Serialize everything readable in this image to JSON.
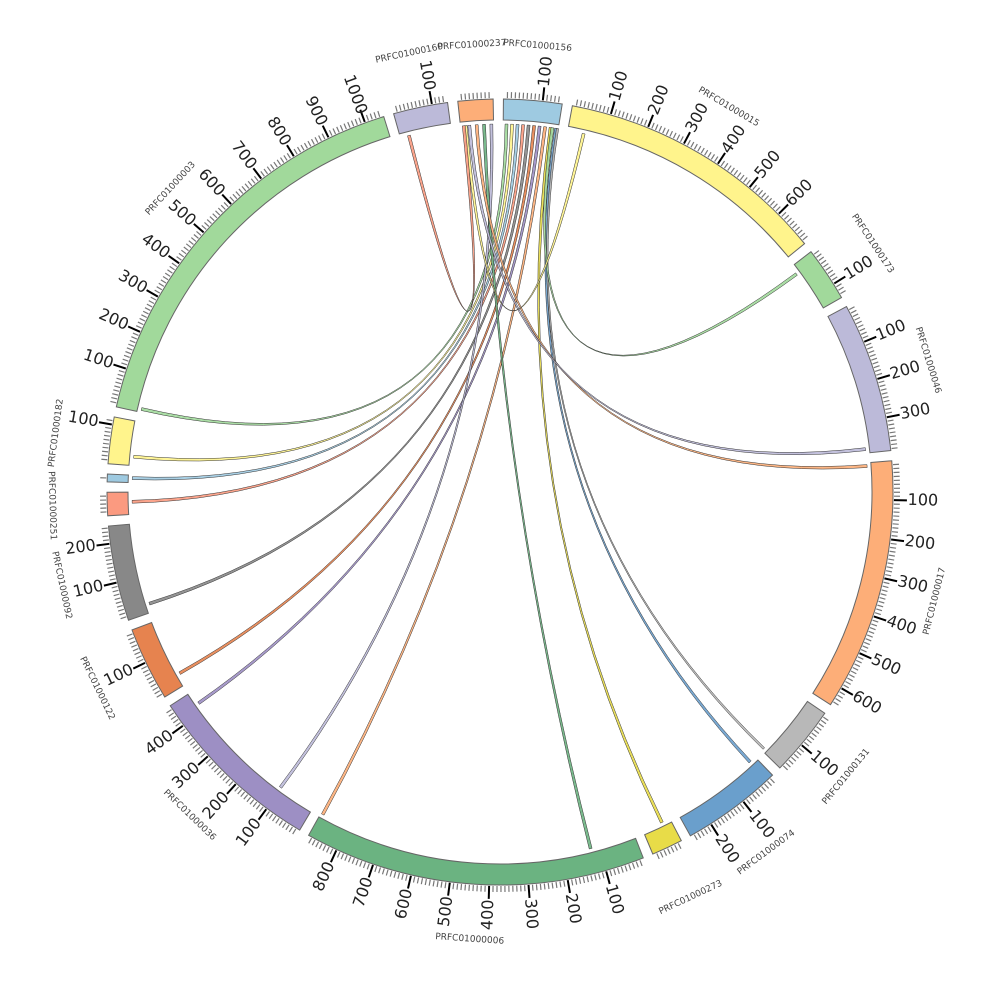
{
  "chart_data": {
    "type": "chord",
    "title": "",
    "tick_step": 100,
    "minor_tick_step": 10,
    "segments": [
      {
        "name": "PRFC01000156",
        "length": 150,
        "color": "#9ecae1"
      },
      {
        "name": "PRFC01000015",
        "length": 700,
        "color": "#fff48c"
      },
      {
        "name": "PRFC01000173",
        "length": 140,
        "color": "#a1d99b"
      },
      {
        "name": "PRFC01000046",
        "length": 385,
        "color": "#bcbad9"
      },
      {
        "name": "PRFC01000017",
        "length": 650,
        "color": "#fdae78"
      },
      {
        "name": "PRFC01000131",
        "length": 180,
        "color": "#b8b8b8"
      },
      {
        "name": "PRFC01000074",
        "length": 260,
        "color": "#6a9fcc"
      },
      {
        "name": "PRFC01000273",
        "length": 80,
        "color": "#e8dc48"
      },
      {
        "name": "PRFC01000006",
        "length": 880,
        "color": "#6bb381"
      },
      {
        "name": "PRFC01000036",
        "length": 460,
        "color": "#9d8fc4"
      },
      {
        "name": "PRFC01000122",
        "length": 190,
        "color": "#e6834f"
      },
      {
        "name": "PRFC01000092",
        "length": 245,
        "color": "#888888"
      },
      {
        "name": "PRFC01000251",
        "length": 60,
        "color": "#fb9a80"
      },
      {
        "name": "",
        "length": 20,
        "color": "#9ecae1"
      },
      {
        "name": "PRFC01000182",
        "length": 120,
        "color": "#fff48c"
      },
      {
        "name": "PRFC01000003",
        "length": 1050,
        "color": "#a1d99b"
      },
      {
        "name": "PRFC01000160",
        "length": 140,
        "color": "#bcbad9"
      },
      {
        "name": "PRFC01000237",
        "length": 90,
        "color": "#fdae78"
      }
    ],
    "links": [
      {
        "a": 0,
        "apos": 5,
        "b": 15,
        "bpos": 5,
        "w": 8,
        "color": "#a1d99b"
      },
      {
        "a": 0,
        "apos": 20,
        "b": 14,
        "bpos": 20,
        "w": 8,
        "color": "#fff48c"
      },
      {
        "a": 0,
        "apos": 35,
        "b": 13,
        "bpos": 8,
        "w": 8,
        "color": "#9ecae1"
      },
      {
        "a": 0,
        "apos": 50,
        "b": 12,
        "bpos": 30,
        "w": 8,
        "color": "#fb9a80"
      },
      {
        "a": 0,
        "apos": 65,
        "b": 11,
        "bpos": 20,
        "w": 8,
        "color": "#888888"
      },
      {
        "a": 0,
        "apos": 80,
        "b": 10,
        "bpos": 30,
        "w": 8,
        "color": "#e6834f"
      },
      {
        "a": 0,
        "apos": 95,
        "b": 9,
        "bpos": 420,
        "w": 8,
        "color": "#9d8fc4"
      },
      {
        "a": 0,
        "apos": 110,
        "b": 8,
        "bpos": 870,
        "w": 8,
        "color": "#fdae78"
      },
      {
        "a": 17,
        "apos": 80,
        "b": 9,
        "bpos": 100,
        "w": 8,
        "color": "#bcbad9"
      },
      {
        "a": 17,
        "apos": 60,
        "b": 8,
        "bpos": 120,
        "w": 8,
        "color": "#6bb381"
      },
      {
        "a": 0,
        "apos": 125,
        "b": 7,
        "bpos": 20,
        "w": 8,
        "color": "#e8dc48"
      },
      {
        "a": 0,
        "apos": 140,
        "b": 6,
        "bpos": 15,
        "w": 8,
        "color": "#6a9fcc"
      },
      {
        "a": 0,
        "apos": 145,
        "b": 5,
        "bpos": 170,
        "w": 6,
        "color": "#b8b8b8"
      },
      {
        "a": 17,
        "apos": 40,
        "b": 4,
        "bpos": 5,
        "w": 8,
        "color": "#fdae78"
      },
      {
        "a": 17,
        "apos": 20,
        "b": 3,
        "bpos": 370,
        "w": 8,
        "color": "#bcbad9"
      },
      {
        "a": 0,
        "apos": 130,
        "b": 2,
        "bpos": 20,
        "w": 8,
        "color": "#a1d99b"
      },
      {
        "a": 1,
        "apos": 40,
        "b": 17,
        "bpos": 10,
        "w": 8,
        "color": "#fff48c"
      },
      {
        "a": 16,
        "apos": 20,
        "b": 17,
        "bpos": 5,
        "w": 8,
        "color": "#fb9a80"
      }
    ]
  }
}
